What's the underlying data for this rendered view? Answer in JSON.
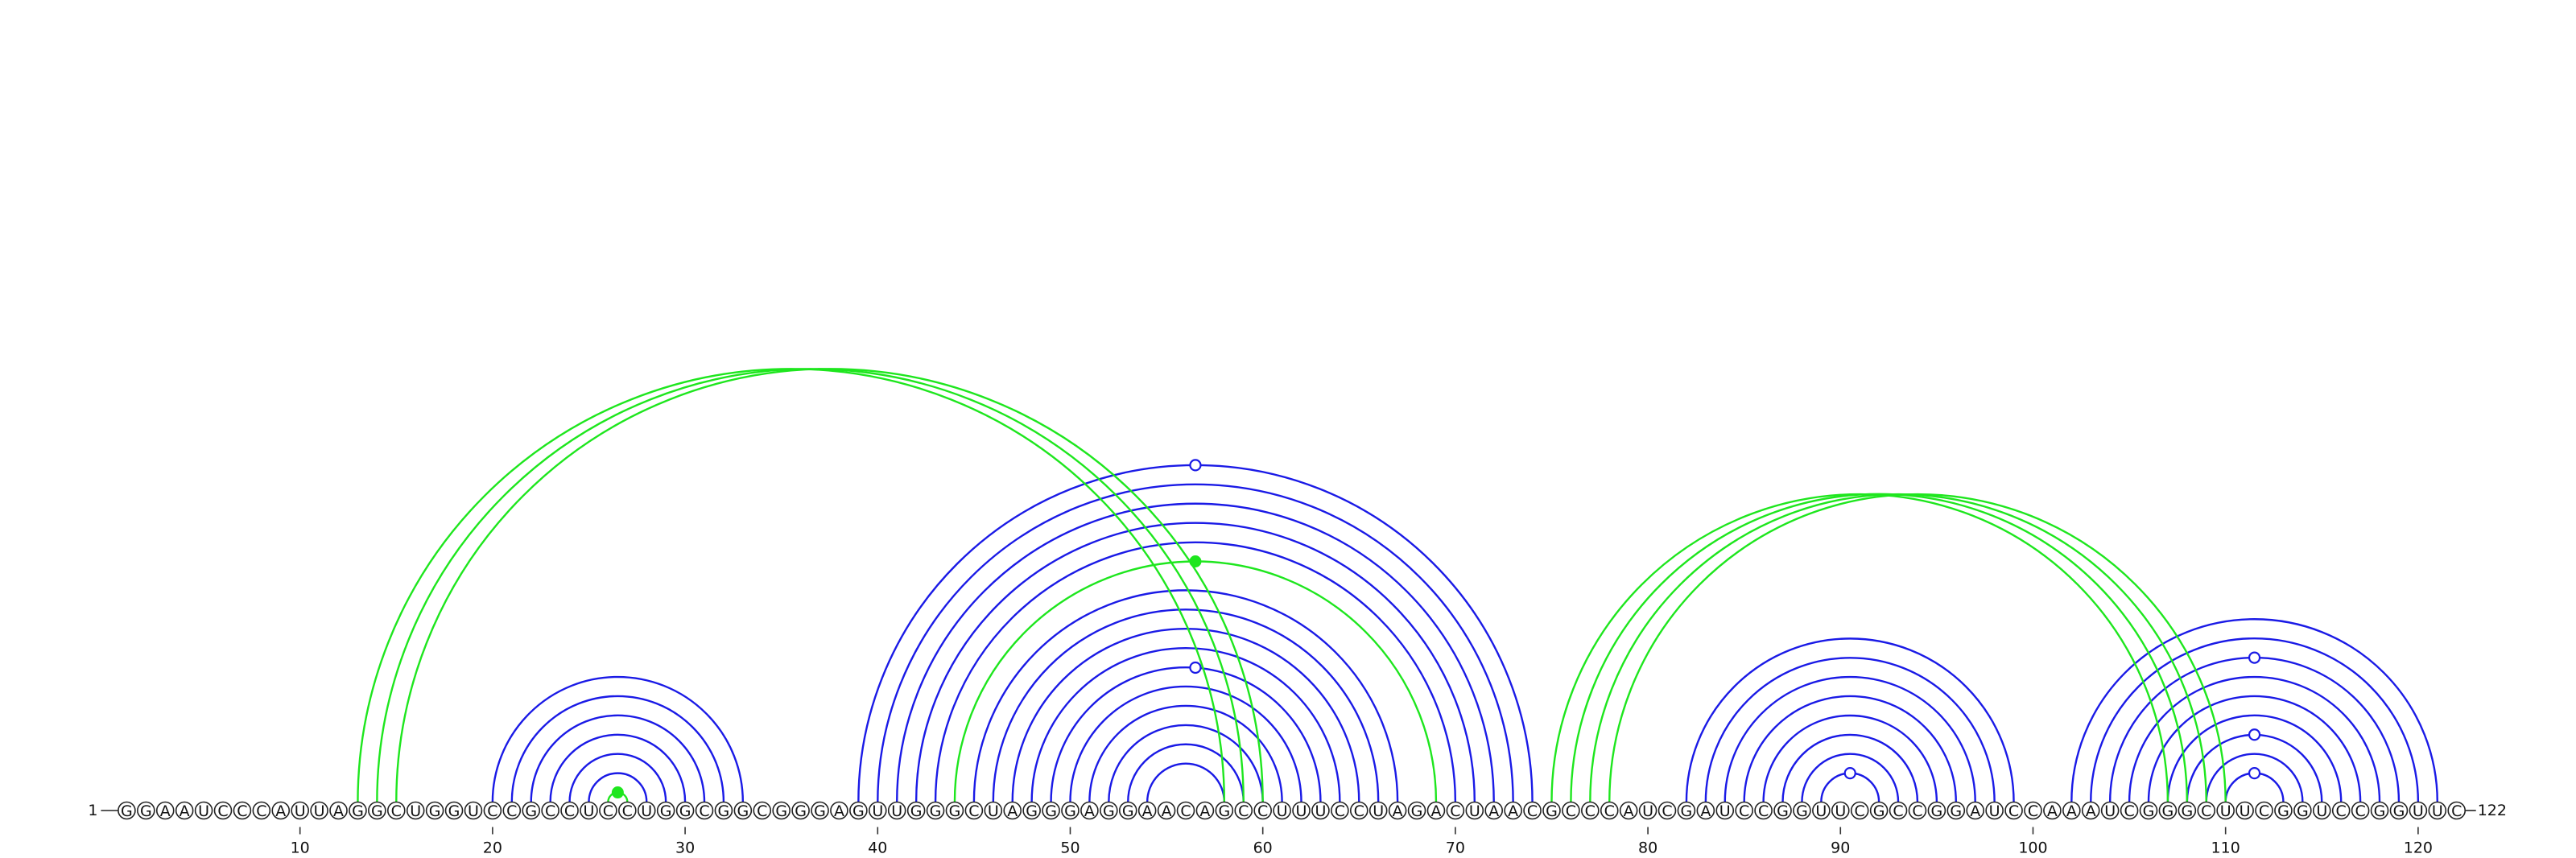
{
  "diagram": {
    "sequence": "GGAAUCCCAUUAGGCUGGUCCGCCUCCUGGCGGCGGGAGUUGGGCUAGGGAGGAACAGCCUUUCCUAGACUAACGCCCAUCGAUCCGGUUCGCCGGAUCCAAAUCGGGCUUCGGUCCGGUUC",
    "start_label": "1",
    "end_label": "122",
    "ticks": [
      {
        "pos": 10,
        "label": "10"
      },
      {
        "pos": 20,
        "label": "20"
      },
      {
        "pos": 30,
        "label": "30"
      },
      {
        "pos": 40,
        "label": "40"
      },
      {
        "pos": 50,
        "label": "50"
      },
      {
        "pos": 60,
        "label": "60"
      },
      {
        "pos": 70,
        "label": "70"
      },
      {
        "pos": 80,
        "label": "80"
      },
      {
        "pos": 90,
        "label": "90"
      },
      {
        "pos": 100,
        "label": "100"
      },
      {
        "pos": 110,
        "label": "110"
      },
      {
        "pos": 120,
        "label": "120"
      }
    ],
    "colors": {
      "blue": "#1a1ae6",
      "green": "#1ee61e"
    },
    "blue_pairs": [
      [
        20,
        33
      ],
      [
        21,
        32
      ],
      [
        22,
        31
      ],
      [
        23,
        30
      ],
      [
        24,
        29
      ],
      [
        25,
        28
      ],
      [
        39,
        74
      ],
      [
        40,
        73
      ],
      [
        41,
        72
      ],
      [
        42,
        71
      ],
      [
        43,
        70
      ],
      [
        45,
        67
      ],
      [
        46,
        66
      ],
      [
        47,
        65
      ],
      [
        48,
        64
      ],
      [
        49,
        63
      ],
      [
        50,
        62
      ],
      [
        51,
        61
      ],
      [
        52,
        60
      ],
      [
        53,
        59
      ],
      [
        54,
        58
      ],
      [
        82,
        99
      ],
      [
        83,
        98
      ],
      [
        84,
        97
      ],
      [
        85,
        96
      ],
      [
        86,
        95
      ],
      [
        87,
        94
      ],
      [
        88,
        93
      ],
      [
        89,
        92
      ],
      [
        102,
        121
      ],
      [
        103,
        120
      ],
      [
        104,
        119
      ],
      [
        105,
        118
      ],
      [
        106,
        117
      ],
      [
        107,
        116
      ],
      [
        108,
        115
      ],
      [
        109,
        114
      ],
      [
        110,
        113
      ]
    ],
    "green_pairs": [
      [
        13,
        58
      ],
      [
        14,
        59
      ],
      [
        15,
        60
      ],
      [
        44,
        69
      ],
      [
        26,
        27
      ],
      [
        75,
        107
      ],
      [
        76,
        108
      ],
      [
        77,
        109
      ],
      [
        78,
        110
      ]
    ],
    "blue_markers": [
      {
        "pos": 56.5,
        "pair": [
          39,
          74
        ]
      },
      {
        "pos": 56.5,
        "pair": [
          49,
          63
        ]
      },
      {
        "pos": 90.5,
        "pair": [
          89,
          92
        ]
      },
      {
        "pos": 111.5,
        "pair": [
          104,
          119
        ]
      },
      {
        "pos": 111.5,
        "pair": [
          108,
          115
        ]
      },
      {
        "pos": 111.5,
        "pair": [
          110,
          113
        ]
      }
    ],
    "green_markers": [
      {
        "pos": 26.5,
        "pair": [
          26,
          27
        ]
      },
      {
        "pos": 56.5,
        "pair": [
          44,
          69
        ]
      }
    ]
  }
}
